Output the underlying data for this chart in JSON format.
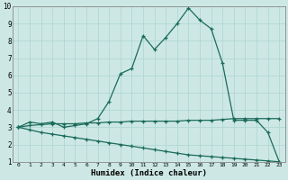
{
  "xlabel": "Humidex (Indice chaleur)",
  "bg_color": "#cde8e4",
  "grid_color": "#b0d8d4",
  "line_color": "#1a6b5a",
  "x_min": 0,
  "x_max": 23,
  "y_min": 1,
  "y_max": 10,
  "line1_x": [
    0,
    1,
    2,
    3,
    4,
    5,
    6,
    7,
    8,
    9,
    10,
    11,
    12,
    13,
    14,
    15,
    16,
    17,
    18,
    19,
    20,
    21,
    22,
    23
  ],
  "line1_y": [
    3.0,
    3.3,
    3.2,
    3.3,
    3.0,
    3.1,
    3.2,
    3.5,
    4.5,
    6.1,
    6.4,
    8.3,
    7.5,
    8.2,
    9.0,
    9.9,
    9.2,
    8.7,
    6.7,
    3.4,
    3.4,
    3.4,
    2.7,
    1.0
  ],
  "line2_x": [
    0,
    1,
    2,
    3,
    4,
    5,
    6,
    7,
    8,
    9,
    10,
    11,
    12,
    13,
    14,
    15,
    16,
    17,
    18,
    19,
    20,
    21,
    22,
    23
  ],
  "line2_y": [
    3.0,
    3.1,
    3.15,
    3.2,
    3.2,
    3.2,
    3.25,
    3.25,
    3.3,
    3.3,
    3.35,
    3.35,
    3.35,
    3.35,
    3.35,
    3.4,
    3.4,
    3.4,
    3.45,
    3.5,
    3.5,
    3.5,
    3.5,
    3.5
  ],
  "line3_x": [
    0,
    1,
    2,
    3,
    4,
    5,
    6,
    7,
    8,
    9,
    10,
    11,
    12,
    13,
    14,
    15,
    16,
    17,
    18,
    19,
    20,
    21,
    22,
    23
  ],
  "line3_y": [
    3.0,
    2.85,
    2.7,
    2.6,
    2.5,
    2.4,
    2.3,
    2.2,
    2.1,
    2.0,
    1.9,
    1.8,
    1.7,
    1.6,
    1.5,
    1.4,
    1.35,
    1.3,
    1.25,
    1.2,
    1.15,
    1.1,
    1.05,
    1.0
  ]
}
